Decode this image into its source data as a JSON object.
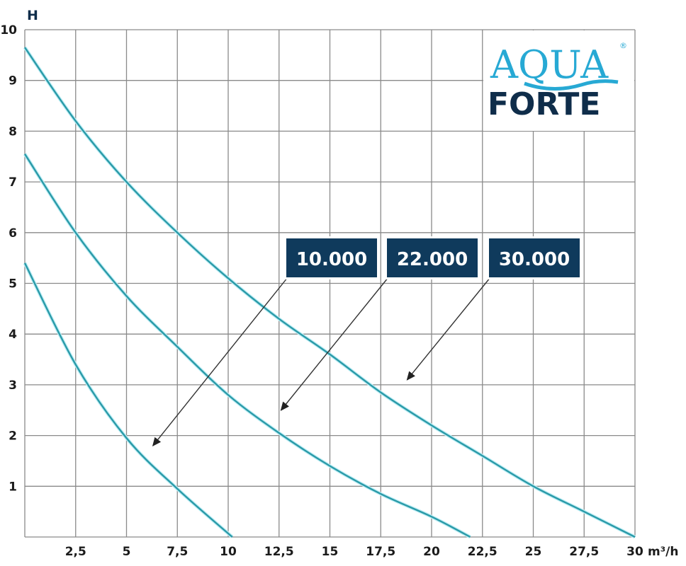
{
  "chart_data": {
    "type": "line",
    "title": "",
    "xlabel": "m³/h",
    "ylabel": "H",
    "xlim": [
      0,
      30
    ],
    "ylim": [
      0,
      10
    ],
    "grid": true,
    "x_ticks": [
      "2,5",
      "5",
      "7,5",
      "10",
      "12,5",
      "15",
      "17,5",
      "20",
      "22,5",
      "25",
      "27,5",
      "30"
    ],
    "y_ticks": [
      "1",
      "2",
      "3",
      "4",
      "5",
      "6",
      "7",
      "8",
      "9",
      "10"
    ],
    "series": [
      {
        "name": "10.000",
        "points": [
          [
            0,
            5.4
          ],
          [
            2.5,
            3.4
          ],
          [
            5,
            1.95
          ],
          [
            7.5,
            0.95
          ],
          [
            10.2,
            0
          ]
        ]
      },
      {
        "name": "22.000",
        "points": [
          [
            0,
            7.55
          ],
          [
            2.5,
            6.0
          ],
          [
            5,
            4.75
          ],
          [
            7.5,
            3.75
          ],
          [
            10,
            2.8
          ],
          [
            12.5,
            2.05
          ],
          [
            15,
            1.4
          ],
          [
            17.5,
            0.85
          ],
          [
            20,
            0.4
          ],
          [
            21.9,
            0
          ]
        ]
      },
      {
        "name": "30.000",
        "points": [
          [
            0,
            9.65
          ],
          [
            2.5,
            8.2
          ],
          [
            5,
            7.0
          ],
          [
            7.5,
            6.0
          ],
          [
            10,
            5.1
          ],
          [
            12.5,
            4.3
          ],
          [
            15,
            3.6
          ],
          [
            17.5,
            2.85
          ],
          [
            20,
            2.2
          ],
          [
            22.5,
            1.6
          ],
          [
            25,
            1.0
          ],
          [
            27.5,
            0.5
          ],
          [
            30,
            0
          ]
        ]
      }
    ],
    "annotations": [
      {
        "label": "10.000",
        "arrow_to": [
          6.3,
          1.8
        ]
      },
      {
        "label": "22.000",
        "arrow_to": [
          12.6,
          2.5
        ]
      },
      {
        "label": "30.000",
        "arrow_to": [
          18.8,
          3.1
        ]
      }
    ],
    "colors": {
      "curve": "#2a9aa8",
      "label_bg": "#0f3a5c",
      "grid": "#8a8a8a"
    }
  },
  "logo": {
    "top": "AQUA",
    "bottom": "FORTE",
    "mark": "®"
  }
}
